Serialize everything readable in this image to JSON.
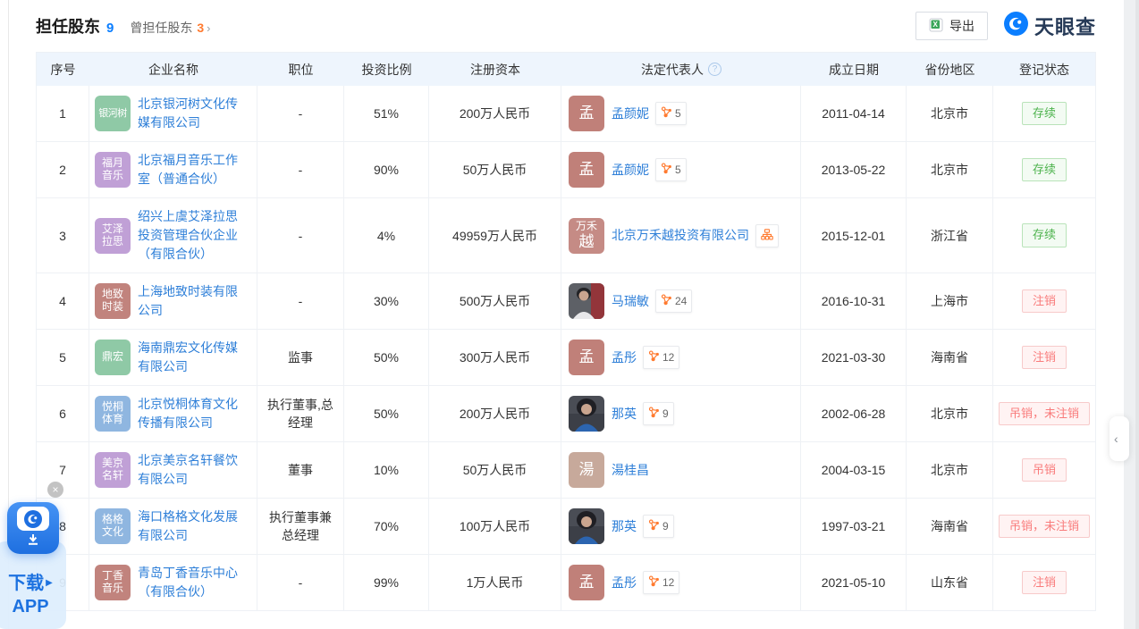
{
  "header": {
    "title": "担任股东",
    "count": "9",
    "former_label": "曾担任股东",
    "former_count": "3",
    "export_label": "导出",
    "brand": "天眼查"
  },
  "icons": {
    "chevron_right": "›",
    "collapse": "‹",
    "close": "×",
    "play": "▶",
    "help": "?"
  },
  "colors": {
    "link": "#2e7fd8",
    "count_blue": "#0b7eff",
    "orange": "#ff7a2f",
    "header_bg": "#eef5fd",
    "status_green": "#4db34d",
    "status_red": "#f97b7b",
    "brand_blue": "#0b7eff"
  },
  "floating_app": {
    "line1": "下载",
    "line2": "APP"
  },
  "table": {
    "columns": [
      "序号",
      "企业名称",
      "职位",
      "投资比例",
      "注册资本",
      "法定代表人",
      "成立日期",
      "省份地区",
      "登记状态"
    ],
    "rows": [
      {
        "no": "1",
        "company": {
          "name": "北京银河树文化传媒有限公司",
          "avatar": {
            "type": "text",
            "lines": [
              "银河树"
            ],
            "color": "#8fc9a6"
          }
        },
        "position": "-",
        "ratio": "51%",
        "capital": "200万人民币",
        "legal_rep": {
          "name": "孟颜妮",
          "avatar": {
            "type": "text",
            "lines": [
              "孟"
            ],
            "color": "#c08079"
          },
          "badge": {
            "type": "graph",
            "count": "5"
          }
        },
        "date": "2011-04-14",
        "province": "北京市",
        "status": {
          "label": "存续",
          "type": "green"
        }
      },
      {
        "no": "2",
        "company": {
          "name": "北京福月音乐工作室（普通合伙）",
          "avatar": {
            "type": "text",
            "lines": [
              "福月",
              "音乐"
            ],
            "color": "#c0a0d6"
          }
        },
        "position": "-",
        "ratio": "90%",
        "capital": "50万人民币",
        "legal_rep": {
          "name": "孟颜妮",
          "avatar": {
            "type": "text",
            "lines": [
              "孟"
            ],
            "color": "#c08079"
          },
          "badge": {
            "type": "graph",
            "count": "5"
          }
        },
        "date": "2013-05-22",
        "province": "北京市",
        "status": {
          "label": "存续",
          "type": "green"
        }
      },
      {
        "no": "3",
        "company": {
          "name": "绍兴上虞艾泽拉思投资管理合伙企业（有限合伙）",
          "avatar": {
            "type": "text",
            "lines": [
              "艾泽",
              "拉思"
            ],
            "color": "#c0a0d6"
          }
        },
        "position": "-",
        "ratio": "4%",
        "capital": "49959万人民币",
        "legal_rep": {
          "name": "北京万禾越投资有限公司",
          "avatar": {
            "type": "text",
            "lines": [
              "万禾",
              "越"
            ],
            "color": "#c58b85"
          },
          "badge": {
            "type": "org"
          }
        },
        "date": "2015-12-01",
        "province": "浙江省",
        "status": {
          "label": "存续",
          "type": "green"
        }
      },
      {
        "no": "4",
        "company": {
          "name": "上海地致时装有限公司",
          "avatar": {
            "type": "text",
            "lines": [
              "地致",
              "时装"
            ],
            "color": "#c1837d"
          }
        },
        "position": "-",
        "ratio": "30%",
        "capital": "500万人民币",
        "legal_rep": {
          "name": "马瑞敏",
          "avatar": {
            "type": "photo",
            "variant": "ma"
          },
          "badge": {
            "type": "graph",
            "count": "24"
          }
        },
        "date": "2016-10-31",
        "province": "上海市",
        "status": {
          "label": "注销",
          "type": "red"
        }
      },
      {
        "no": "5",
        "company": {
          "name": "海南鼎宏文化传媒有限公司",
          "avatar": {
            "type": "text",
            "lines": [
              "鼎宏"
            ],
            "color": "#8fc9a6"
          }
        },
        "position": "监事",
        "ratio": "50%",
        "capital": "300万人民币",
        "legal_rep": {
          "name": "孟彤",
          "avatar": {
            "type": "text",
            "lines": [
              "孟"
            ],
            "color": "#c08079"
          },
          "badge": {
            "type": "graph",
            "count": "12"
          }
        },
        "date": "2021-03-30",
        "province": "海南省",
        "status": {
          "label": "注销",
          "type": "red"
        }
      },
      {
        "no": "6",
        "company": {
          "name": "北京悦桐体育文化传播有限公司",
          "avatar": {
            "type": "text",
            "lines": [
              "悦桐",
              "体育"
            ],
            "color": "#8fb6e0"
          }
        },
        "position": "执行董事,总经理",
        "ratio": "50%",
        "capital": "200万人民币",
        "legal_rep": {
          "name": "那英",
          "avatar": {
            "type": "photo",
            "variant": "naying"
          },
          "badge": {
            "type": "graph",
            "count": "9"
          }
        },
        "date": "2002-06-28",
        "province": "北京市",
        "status": {
          "label": "吊销，未注销",
          "type": "red"
        }
      },
      {
        "no": "7",
        "company": {
          "name": "北京美京名轩餐饮有限公司",
          "avatar": {
            "type": "text",
            "lines": [
              "美京",
              "名轩"
            ],
            "color": "#c0a0d6"
          }
        },
        "position": "董事",
        "ratio": "10%",
        "capital": "50万人民币",
        "legal_rep": {
          "name": "湯桂昌",
          "avatar": {
            "type": "text",
            "lines": [
              "湯"
            ],
            "color": "#c7a99b"
          },
          "badge": null
        },
        "date": "2004-03-15",
        "province": "北京市",
        "status": {
          "label": "吊销",
          "type": "red"
        }
      },
      {
        "no": "8",
        "company": {
          "name": "海口格格文化发展有限公司",
          "avatar": {
            "type": "text",
            "lines": [
              "格格",
              "文化"
            ],
            "color": "#8fb6e0"
          }
        },
        "position": "执行董事兼总经理",
        "ratio": "70%",
        "capital": "100万人民币",
        "legal_rep": {
          "name": "那英",
          "avatar": {
            "type": "photo",
            "variant": "naying"
          },
          "badge": {
            "type": "graph",
            "count": "9"
          }
        },
        "date": "1997-03-21",
        "province": "海南省",
        "status": {
          "label": "吊销，未注销",
          "type": "red"
        }
      },
      {
        "no": "9",
        "company": {
          "name": "青岛丁香音乐中心（有限合伙）",
          "avatar": {
            "type": "text",
            "lines": [
              "丁香",
              "音乐"
            ],
            "color": "#c1837d"
          }
        },
        "position": "-",
        "ratio": "99%",
        "capital": "1万人民币",
        "legal_rep": {
          "name": "孟彤",
          "avatar": {
            "type": "text",
            "lines": [
              "孟"
            ],
            "color": "#c08079"
          },
          "badge": {
            "type": "graph",
            "count": "12"
          }
        },
        "date": "2021-05-10",
        "province": "山东省",
        "status": {
          "label": "注销",
          "type": "red"
        }
      }
    ]
  }
}
